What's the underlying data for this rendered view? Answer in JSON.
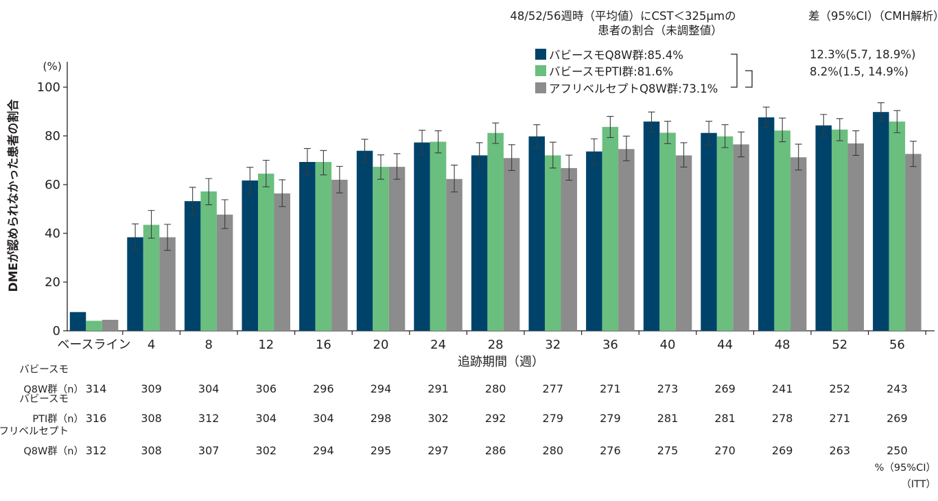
{
  "chart_data": {
    "type": "bar",
    "y_unit_label": "(%)",
    "ylabel": "DMEが認められなかった患者の割合",
    "xlabel": "追跡期間（週）",
    "ylim": [
      0,
      100
    ],
    "yticks": [
      "0",
      "20",
      "40",
      "60",
      "80",
      "100"
    ],
    "categories": [
      "ベースライン",
      "4",
      "8",
      "12",
      "16",
      "20",
      "24",
      "28",
      "32",
      "36",
      "40",
      "44",
      "48",
      "52",
      "56"
    ],
    "series": [
      {
        "name": "バビースモQ8W群:85.4%",
        "color": "#00436a",
        "values": [
          7.7,
          38.4,
          53.2,
          61.7,
          69.3,
          73.9,
          77.3,
          72.0,
          79.8,
          73.6,
          85.9,
          81.2,
          87.6,
          84.3,
          89.8
        ],
        "err_low": [
          null,
          33.0,
          47.5,
          56.3,
          64.0,
          69.1,
          72.3,
          66.8,
          75.2,
          68.4,
          81.7,
          76.4,
          83.5,
          79.8,
          86.0
        ],
        "err_high": [
          null,
          43.9,
          58.9,
          67.1,
          74.8,
          78.6,
          82.3,
          77.2,
          84.6,
          78.8,
          89.8,
          86.0,
          91.8,
          88.8,
          93.6
        ]
      },
      {
        "name": "バビースモPTI群:81.6%",
        "color": "#6abf7f",
        "values": [
          4.1,
          43.5,
          57.2,
          64.5,
          69.3,
          67.3,
          77.6,
          81.2,
          72.0,
          83.7,
          81.3,
          79.8,
          82.2,
          82.6,
          85.9
        ],
        "err_low": [
          null,
          38.0,
          51.7,
          59.1,
          64.0,
          62.2,
          73.0,
          76.9,
          66.8,
          79.3,
          76.8,
          75.2,
          77.6,
          78.0,
          81.3
        ],
        "err_high": [
          null,
          49.4,
          62.5,
          70.0,
          74.0,
          72.2,
          82.1,
          85.3,
          77.4,
          88.0,
          86.0,
          84.6,
          87.3,
          87.1,
          90.4
        ]
      },
      {
        "name": "アフリベルセプトQ8W群:73.1%",
        "color": "#8c8c8c",
        "values": [
          4.5,
          38.4,
          47.7,
          56.4,
          62.0,
          67.3,
          62.3,
          70.9,
          66.8,
          74.6,
          72.0,
          76.5,
          71.2,
          76.9,
          72.6
        ],
        "err_low": [
          null,
          33.0,
          42.0,
          51.0,
          56.6,
          62.2,
          57.0,
          65.8,
          61.8,
          69.8,
          67.2,
          71.4,
          66.0,
          72.0,
          67.4
        ],
        "err_high": [
          null,
          43.7,
          53.8,
          62.0,
          67.5,
          72.7,
          68.0,
          76.4,
          72.1,
          79.9,
          77.2,
          81.6,
          76.6,
          82.1,
          77.8
        ]
      }
    ],
    "legend_title": [
      "48/52/56週時（平均値）にCST＜325μmの",
      "患者の割合（未調整値）"
    ],
    "diff_title": "差（95%CI）（CMH解析）",
    "diffs": [
      "12.3%(5.7, 18.9%)",
      "8.2%(1.5, 14.9%)"
    ]
  },
  "n_table": {
    "rows": [
      {
        "label_line1": "バビースモ",
        "label_line2": "Q8W群（n）",
        "values": [
          "314",
          "309",
          "304",
          "306",
          "296",
          "294",
          "291",
          "280",
          "277",
          "271",
          "273",
          "269",
          "241",
          "252",
          "243"
        ]
      },
      {
        "label_line1": "バビースモ",
        "label_line2": "PTI群（n）",
        "values": [
          "316",
          "308",
          "312",
          "304",
          "304",
          "298",
          "302",
          "292",
          "279",
          "279",
          "281",
          "281",
          "278",
          "271",
          "269"
        ]
      },
      {
        "label_line1": "アフリベルセプト",
        "label_line2": "Q8W群（n）",
        "values": [
          "312",
          "308",
          "307",
          "302",
          "294",
          "295",
          "297",
          "286",
          "280",
          "276",
          "275",
          "270",
          "269",
          "263",
          "250"
        ]
      }
    ]
  },
  "footnote": [
    "%（95%CI）",
    "（ITT）"
  ]
}
